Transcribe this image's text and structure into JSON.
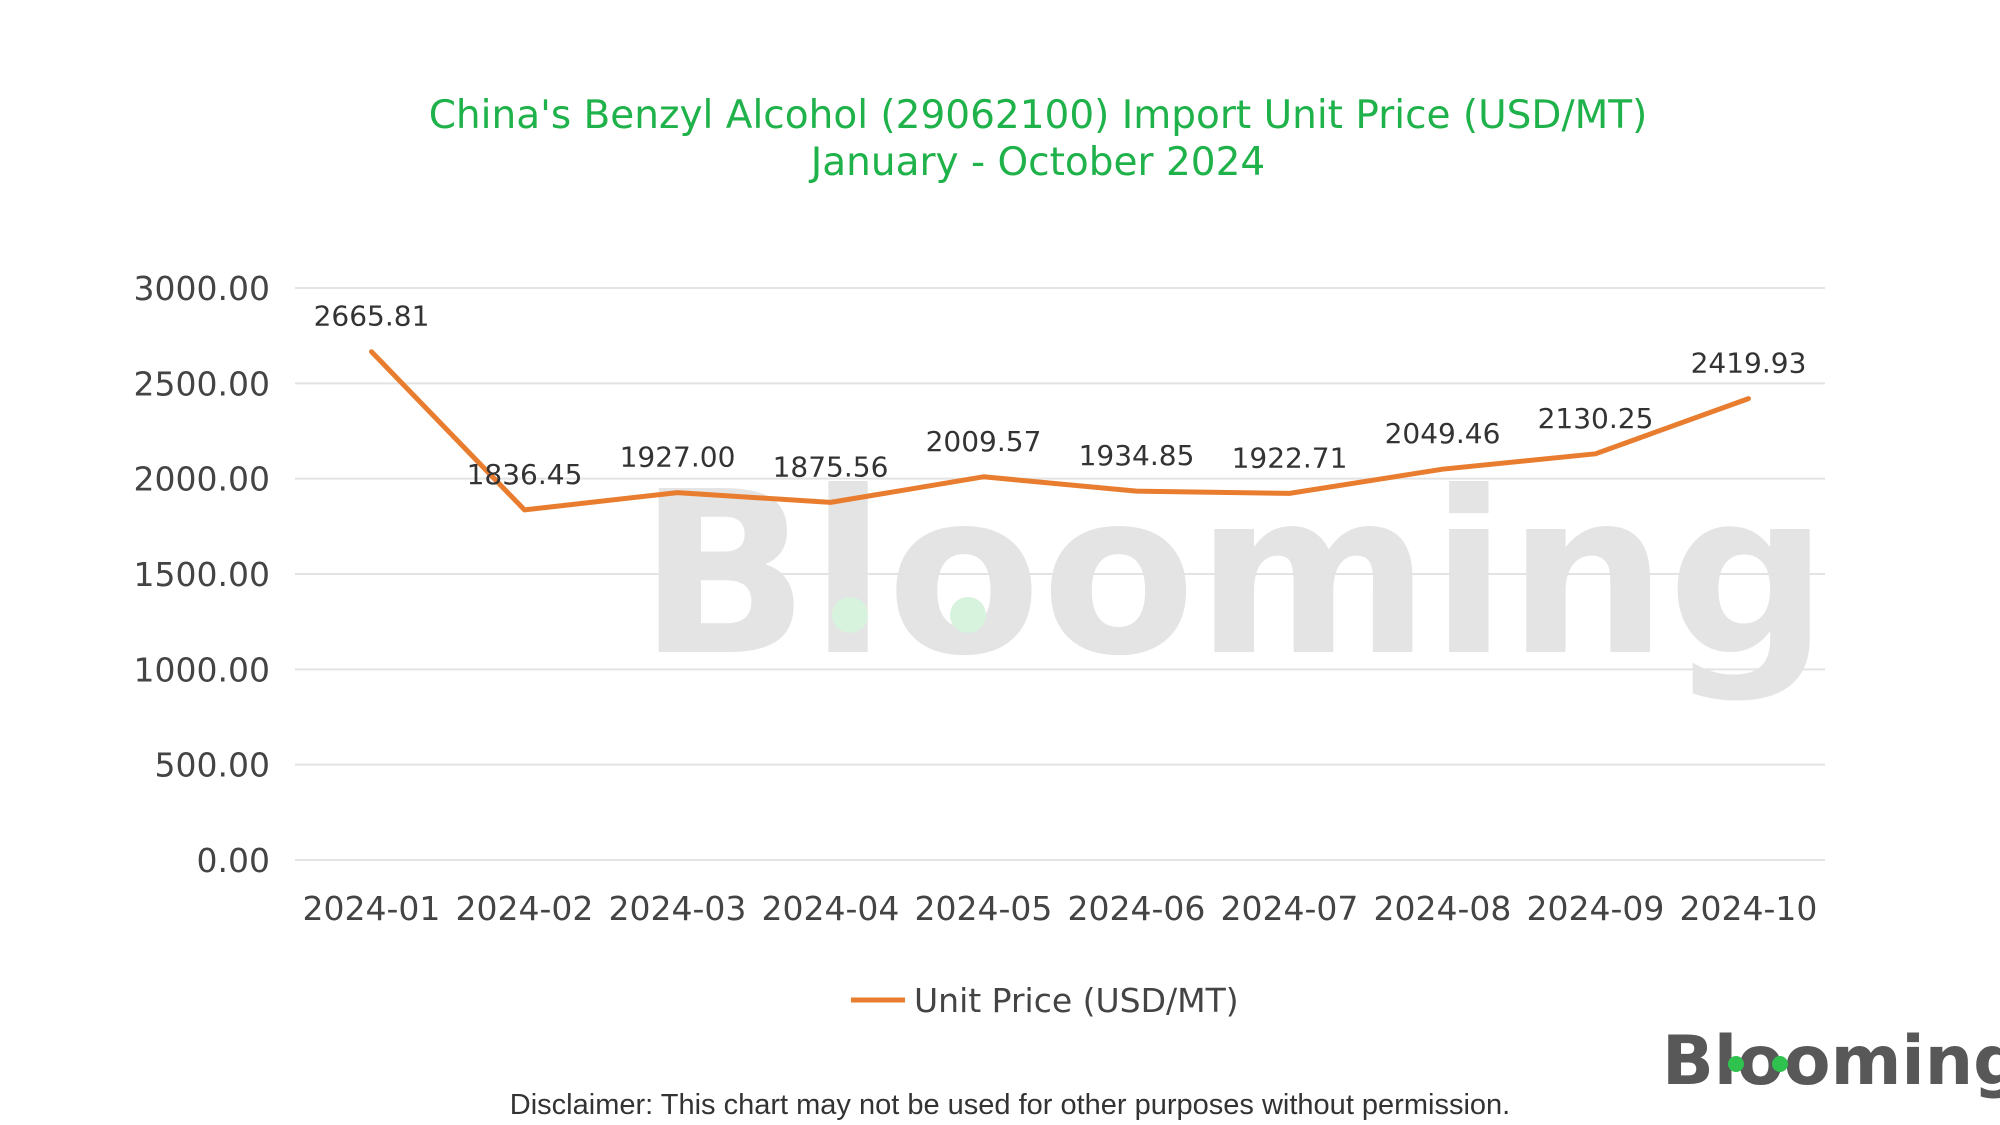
{
  "chart_data": {
    "type": "line",
    "title": "China's Benzyl Alcohol (29062100) Import Unit Price (USD/MT)",
    "subtitle": "January - October 2024",
    "categories": [
      "2024-01",
      "2024-02",
      "2024-03",
      "2024-04",
      "2024-05",
      "2024-06",
      "2024-07",
      "2024-08",
      "2024-09",
      "2024-10"
    ],
    "series": [
      {
        "name": "Unit Price (USD/MT)",
        "values": [
          2665.81,
          1836.45,
          1927.0,
          1875.56,
          2009.57,
          1934.85,
          1922.71,
          2049.46,
          2130.25,
          2419.93
        ],
        "labels": [
          "2665.81",
          "1836.45",
          "1927.00",
          "1875.56",
          "2009.57",
          "1934.85",
          "1922.71",
          "2049.46",
          "2130.25",
          "2419.93"
        ],
        "color": "#e97d2f"
      }
    ],
    "y_ticks": [
      "0.00",
      "500.00",
      "1000.00",
      "1500.00",
      "2000.00",
      "2500.00",
      "3000.00"
    ],
    "ylim": [
      0,
      3000
    ],
    "grid": true,
    "legend_position": "bottom",
    "title_color": "#1fb24a"
  },
  "watermark": {
    "text": "Blooming"
  },
  "brand_logo": {
    "text": "Blooming"
  },
  "disclaimer": "Disclaimer: This chart may not be used for other purposes without permission."
}
